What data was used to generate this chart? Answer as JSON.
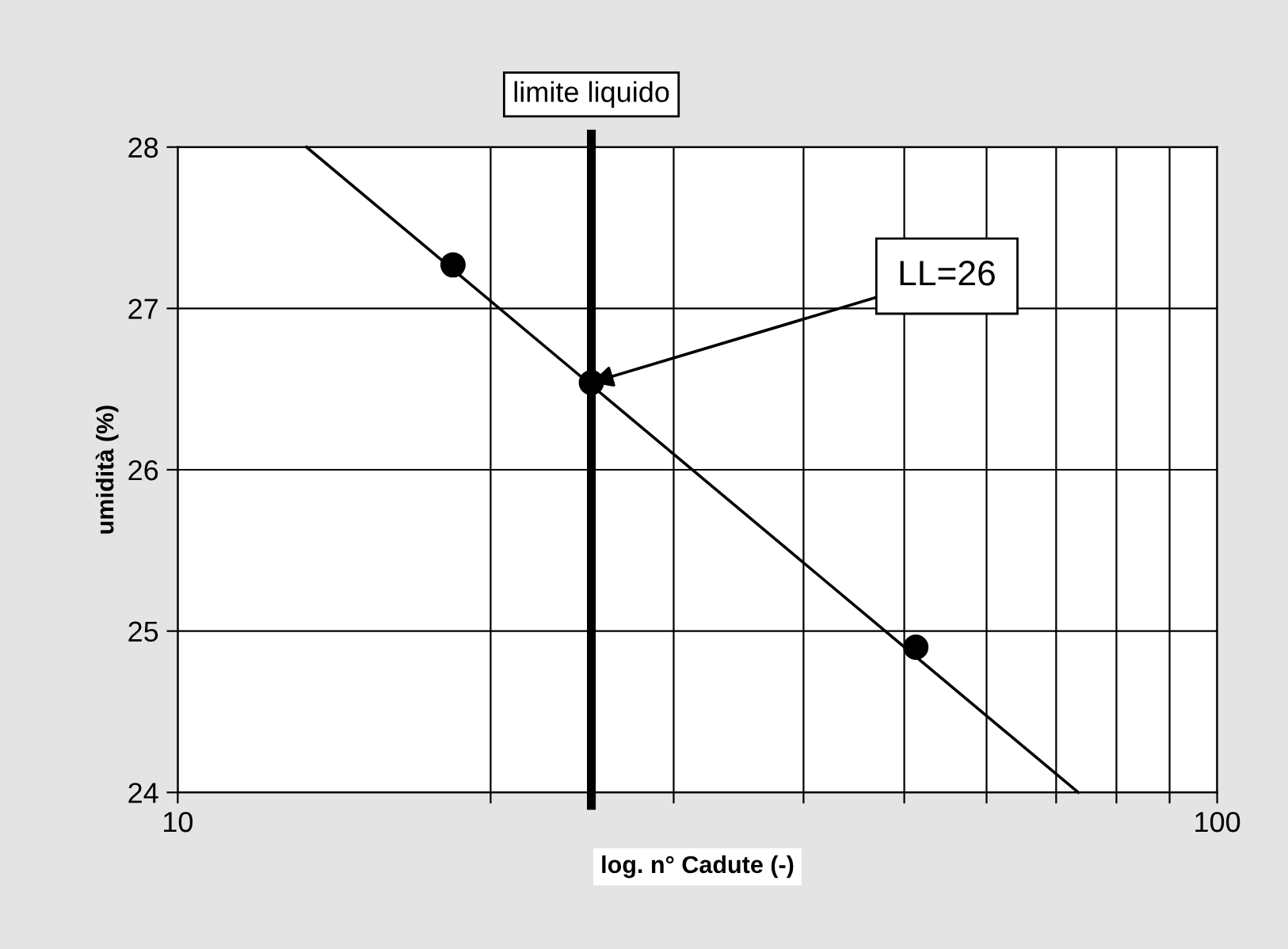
{
  "chart_data": {
    "type": "scatter",
    "xlabel": "log. n° Cadute (-)",
    "ylabel": "umidità (%)",
    "log": "x",
    "xlim": [
      10,
      100
    ],
    "ylim": [
      24,
      28
    ],
    "xticks": [
      10,
      {
        "value": 20,
        "label": null
      },
      {
        "value": 30,
        "label": null
      },
      {
        "value": 40,
        "label": null
      },
      {
        "value": 50,
        "label": null
      },
      {
        "value": 60,
        "label": null
      },
      {
        "value": 70,
        "label": null
      },
      {
        "value": 80,
        "label": null
      },
      {
        "value": 90,
        "label": null
      },
      100
    ],
    "yticks": [
      24,
      25,
      26,
      27,
      28
    ],
    "grid": true,
    "marker": "circle",
    "series": [
      {
        "color": "#000000",
        "x": [
          18.4,
          25,
          51.3
        ],
        "values": [
          27.27,
          26.54,
          24.9
        ]
      },
      {
        "type": "line",
        "color": "#000000",
        "marker": "none",
        "line_style": "solid",
        "x": [
          13.3,
          73.5
        ],
        "values": [
          28,
          24
        ]
      }
    ],
    "ref_lines": [
      {
        "axis": "x",
        "value": 25,
        "label": "limite liquido",
        "color": "#000000"
      }
    ],
    "annotations": [
      {
        "text": "LL=26",
        "x": 25,
        "y": 26.54
      }
    ]
  }
}
